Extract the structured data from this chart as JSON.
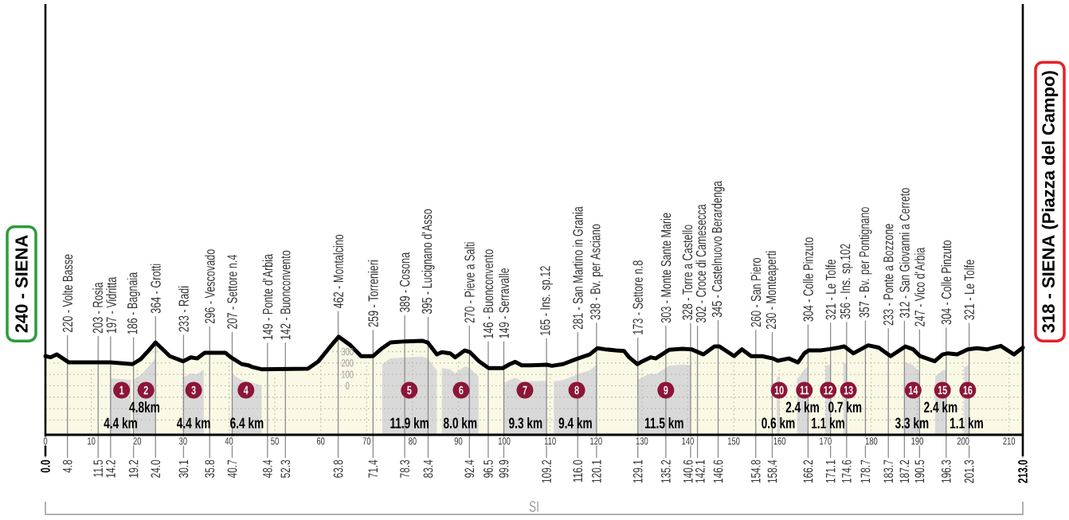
{
  "chart_data": {
    "type": "area",
    "xlim": [
      0,
      213
    ],
    "xticks": [
      0,
      10,
      20,
      30,
      40,
      50,
      60,
      70,
      80,
      90,
      100,
      110,
      120,
      130,
      140,
      150,
      160,
      170,
      180,
      190,
      200,
      210
    ],
    "ylim": [
      -430,
      3350
    ],
    "yticks": [
      {
        "value": -300,
        "label": null
      },
      {
        "value": -200,
        "label": null
      },
      {
        "value": -100,
        "label": null
      },
      0,
      100,
      200,
      300
    ],
    "x2lim": [
      0,
      213
    ],
    "x2ticks": [
      {
        "value": 0,
        "label": "0.0"
      },
      4.8,
      11.5,
      14.2,
      19.2,
      {
        "value": 24,
        "label": "24.0"
      },
      30.1,
      35.8,
      40.7,
      48.4,
      52.3,
      63.8,
      71.4,
      78.3,
      83.4,
      92.4,
      96.5,
      99.9,
      109.2,
      {
        "value": 116,
        "label": "116.0"
      },
      120.1,
      129.1,
      135.2,
      140.6,
      142.1,
      146.6,
      154.8,
      158.4,
      166.2,
      171.1,
      174.6,
      178.7,
      183.7,
      187.2,
      190.5,
      196.3,
      201.3,
      {
        "value": 213,
        "label": "213.0"
      }
    ],
    "grid": true,
    "series": [
      {
        "color": "#f9f9e6",
        "x": [
          0,
          1.1,
          2.5,
          5.1,
          14.1,
          19.0,
          20.8,
          22.5,
          24.0,
          27.1,
          30.0,
          31.7,
          33.1,
          34.7,
          35.8,
          39.2,
          40.4,
          42.8,
          44.2,
          45.1,
          47.1,
          57.2,
          59.5,
          61.8,
          63.9,
          66.5,
          68.8,
          71.4,
          73.4,
          75.2,
          78.6,
          82.1,
          83.3,
          85.3,
          86.4,
          88.2,
          89.3,
          91.4,
          92.5,
          94.5,
          96.6,
          99.7,
          101.2,
          102.4,
          103.8,
          105.8,
          109.3,
          110.4,
          112.8,
          115.7,
          118.6,
          120.3,
          122.0,
          124.3,
          126.1,
          127.2,
          129.0,
          130.1,
          131.9,
          133.0,
          135.9,
          138.8,
          140.8,
          143.4,
          145.8,
          146.9,
          150.1,
          151.8,
          153.8,
          156.2,
          158.5,
          159.6,
          162.0,
          164.0,
          165.4,
          166.3,
          168.9,
          170.6,
          172.9,
          174.1,
          176.1,
          179.3,
          181.6,
          184.2,
          187.4,
          189.1,
          190.6,
          193.8,
          195.5,
          196.7,
          198.7,
          201.0,
          203.0,
          205.3,
          208.2,
          211.1,
          213.0
        ],
        "values": [
          260,
          250,
          275,
          205,
          205,
          190,
          235,
          310,
          380,
          260,
          215,
          250,
          240,
          290,
          290,
          290,
          250,
          190,
          180,
          165,
          145,
          150,
          215,
          330,
          430,
          355,
          260,
          260,
          330,
          380,
          390,
          395,
          380,
          275,
          295,
          285,
          250,
          310,
          295,
          215,
          155,
          155,
          190,
          210,
          180,
          180,
          185,
          175,
          190,
          235,
          275,
          330,
          320,
          310,
          305,
          250,
          190,
          215,
          250,
          240,
          315,
          325,
          320,
          275,
          345,
          345,
          260,
          320,
          260,
          260,
          240,
          220,
          240,
          205,
          285,
          310,
          310,
          320,
          335,
          345,
          285,
          355,
          335,
          260,
          345,
          320,
          260,
          215,
          275,
          285,
          275,
          320,
          330,
          320,
          350,
          275,
          335
        ]
      }
    ],
    "bands": [
      {
        "axis": "y",
        "from": -430,
        "to": 0,
        "color": "#f9f9e6"
      },
      {
        "axis": "x",
        "from": 14.2,
        "to": 18.6,
        "label": "4.4 km"
      },
      {
        "axis": "x",
        "from": 19.2,
        "to": 24.0,
        "label": "4.8km"
      },
      {
        "axis": "x",
        "from": 30.1,
        "to": 34.5,
        "label": "4.4 km"
      },
      {
        "axis": "x",
        "from": 40.7,
        "to": 47.1,
        "label": "6.4 km"
      },
      {
        "axis": "x",
        "from": 73.4,
        "to": 85.3,
        "label": "11.9 km"
      },
      {
        "axis": "x",
        "from": 86.4,
        "to": 94.4,
        "label": "8.0 km"
      },
      {
        "axis": "x",
        "from": 100.0,
        "to": 109.3,
        "label": "9.3 km"
      },
      {
        "axis": "x",
        "from": 110.8,
        "to": 120.2,
        "label": "9.4 km"
      },
      {
        "axis": "x",
        "from": 129.1,
        "to": 140.6,
        "label": "11.5 km"
      },
      {
        "axis": "x",
        "from": 159.4,
        "to": 160.0,
        "label": "0.6 km"
      },
      {
        "axis": "x",
        "from": 163.8,
        "to": 166.2,
        "label": "2.4 km"
      },
      {
        "axis": "x",
        "from": 170.0,
        "to": 171.1,
        "label": "1.1 km"
      },
      {
        "axis": "x",
        "from": 173.9,
        "to": 174.6,
        "label": "0.7 km"
      },
      {
        "axis": "x",
        "from": 187.2,
        "to": 190.5,
        "label": "3.3 km"
      },
      {
        "axis": "x",
        "from": 193.9,
        "to": 196.3,
        "label": "2.4 km"
      },
      {
        "axis": "x",
        "from": 200.2,
        "to": 201.3,
        "label": "1.1 km"
      }
    ],
    "ref_lines": [
      {
        "axis": "x",
        "value": 4.8,
        "label": "220 - Volte Basse"
      },
      {
        "axis": "x",
        "value": 11.5,
        "label": "203 - Rosia"
      },
      {
        "axis": "x",
        "value": 14.2,
        "label": "197 - Vidritta"
      },
      {
        "axis": "x",
        "value": 19.2,
        "label": "186 - Bagnaia"
      },
      {
        "axis": "x",
        "value": 24.0,
        "label": "364 - Grotti"
      },
      {
        "axis": "x",
        "value": 30.1,
        "label": "233 - Radi"
      },
      {
        "axis": "x",
        "value": 35.8,
        "label": "296 - Vescovado"
      },
      {
        "axis": "x",
        "value": 40.7,
        "label": "207 - Settore n.4"
      },
      {
        "axis": "x",
        "value": 48.4,
        "label": "149 - Ponte d'Arbia"
      },
      {
        "axis": "x",
        "value": 52.3,
        "label": "142 - Buonconvento"
      },
      {
        "axis": "x",
        "value": 63.8,
        "label": "462 - Montalcino"
      },
      {
        "axis": "x",
        "value": 71.4,
        "label": "259 - Torrenieri"
      },
      {
        "axis": "x",
        "value": 78.3,
        "label": "389 - Cosona"
      },
      {
        "axis": "x",
        "value": 83.4,
        "label": "395 - Lucignano d'Asso"
      },
      {
        "axis": "x",
        "value": 92.4,
        "label": "270 - Pieve a Salti"
      },
      {
        "axis": "x",
        "value": 96.5,
        "label": "146 - Buonconvento"
      },
      {
        "axis": "x",
        "value": 99.9,
        "label": "149 - Serravalle"
      },
      {
        "axis": "x",
        "value": 109.2,
        "label": "165 - Ins. sp.12"
      },
      {
        "axis": "x",
        "value": 116.0,
        "label": "281 - San Martino in Grania"
      },
      {
        "axis": "x",
        "value": 120.1,
        "label": "338 - Bv. per Asciano"
      },
      {
        "axis": "x",
        "value": 129.1,
        "label": "173 - Settore n.8"
      },
      {
        "axis": "x",
        "value": 135.2,
        "label": "303 - Monte Sante Marie"
      },
      {
        "axis": "x",
        "value": 140.6,
        "label": "328 - Torre a Castello"
      },
      {
        "axis": "x",
        "value": 142.1,
        "label": "302 - Croce di Camesecca"
      },
      {
        "axis": "x",
        "value": 146.6,
        "label": "345 - Castelnuovo Berardenga"
      },
      {
        "axis": "x",
        "value": 154.8,
        "label": "260 - San Piero"
      },
      {
        "axis": "x",
        "value": 158.4,
        "label": "230 - Monteaperti"
      },
      {
        "axis": "x",
        "value": 166.2,
        "label": "304 - Colle Pinzuto"
      },
      {
        "axis": "x",
        "value": 171.1,
        "label": "321 - Le Tolfe"
      },
      {
        "axis": "x",
        "value": 174.6,
        "label": "356 - Ins. sp.102"
      },
      {
        "axis": "x",
        "value": 178.7,
        "label": "357 - Bv. per Pontignano"
      },
      {
        "axis": "x",
        "value": 183.7,
        "label": "233 - Ponte a Bozzone"
      },
      {
        "axis": "x",
        "value": 187.2,
        "label": "312 - San Giovanni a Cerreto"
      },
      {
        "axis": "x",
        "value": 190.5,
        "label": "247 - Vico d'Arbia"
      },
      {
        "axis": "x",
        "value": 196.3,
        "label": "304 - Colle Pinzuto"
      },
      {
        "axis": "x",
        "value": 201.3,
        "label": "321 - Le Tolfe"
      }
    ],
    "annotations": [
      "240 - SIENA",
      "318 - SIENA (Piazza del Campo)",
      "SI",
      {
        "text": "1",
        "x": 16.6
      },
      {
        "text": "2",
        "x": 21.9
      },
      {
        "text": "3",
        "x": 32.3
      },
      {
        "text": "4",
        "x": 43.7
      },
      {
        "text": "5",
        "x": 79.3
      },
      {
        "text": "6",
        "x": 90.6
      },
      {
        "text": "7",
        "x": 104.5
      },
      {
        "text": "8",
        "x": 115.8
      },
      {
        "text": "9",
        "x": 135.2
      },
      {
        "text": "10",
        "x": 159.9
      },
      {
        "text": "11",
        "x": 165.4
      },
      {
        "text": "12",
        "x": 170.6
      },
      {
        "text": "13",
        "x": 175.0
      },
      {
        "text": "14",
        "x": 189.1
      },
      {
        "text": "15",
        "x": 195.5
      },
      {
        "text": "16",
        "x": 201.0
      }
    ]
  }
}
